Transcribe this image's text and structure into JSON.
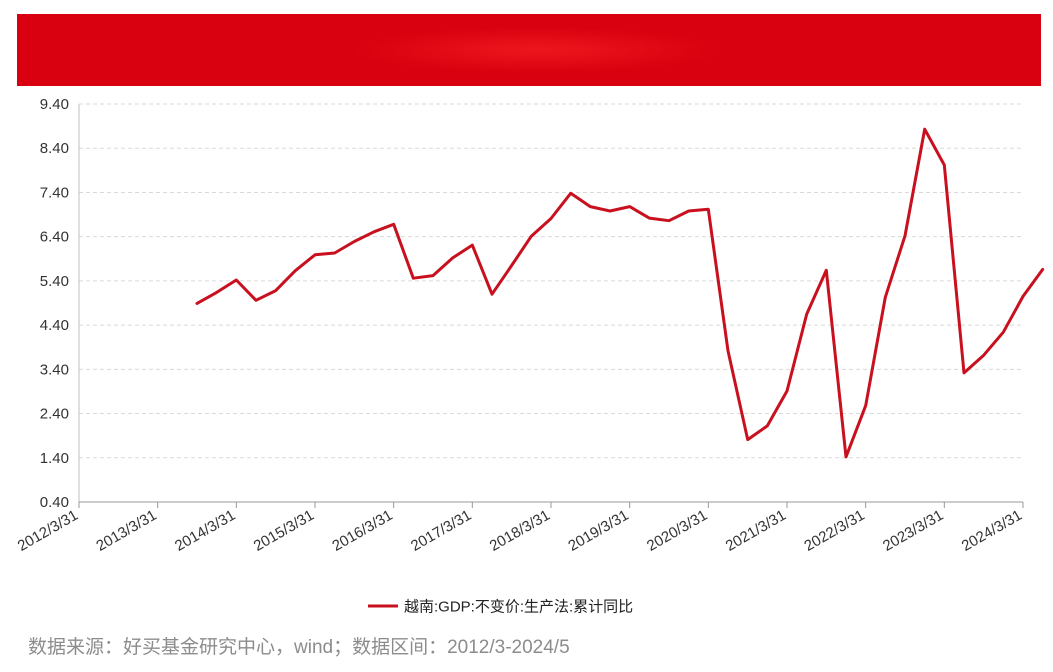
{
  "banner": {
    "color": "#d9000f"
  },
  "source_note": "数据来源：好买基金研究中心，wind；数据区间：2012/3-2024/5",
  "chart_data": {
    "type": "line",
    "yticks": [
      "9.40",
      "8.40",
      "7.40",
      "6.40",
      "5.40",
      "4.40",
      "3.40",
      "2.40",
      "1.40",
      "0.40"
    ],
    "ylim": [
      0.4,
      9.4
    ],
    "xticks": [
      "2012/3/31",
      "2013/3/31",
      "2014/3/31",
      "2015/3/31",
      "2016/3/31",
      "2017/3/31",
      "2018/3/31",
      "2019/3/31",
      "2020/3/31",
      "2021/3/31",
      "2022/3/31",
      "2023/3/31",
      "2024/3/31"
    ],
    "grid": "horizontal-dashed",
    "legend_position": "bottom",
    "series": [
      {
        "name": "越南:GDP:不变价:生产法:累计同比",
        "color": "#c8101e",
        "values": [
          4.89,
          5.14,
          5.42,
          4.96,
          5.18,
          5.63,
          5.99,
          6.03,
          6.29,
          6.51,
          6.68,
          5.46,
          5.52,
          5.92,
          6.21,
          5.1,
          5.75,
          6.41,
          6.81,
          7.38,
          7.08,
          6.98,
          7.08,
          6.82,
          6.76,
          6.98,
          7.02,
          3.82,
          1.81,
          2.12,
          2.91,
          4.65,
          5.64,
          1.42,
          2.58,
          5.03,
          6.42,
          8.83,
          8.02,
          3.32,
          3.72,
          4.24,
          5.05,
          5.66
        ]
      }
    ]
  }
}
